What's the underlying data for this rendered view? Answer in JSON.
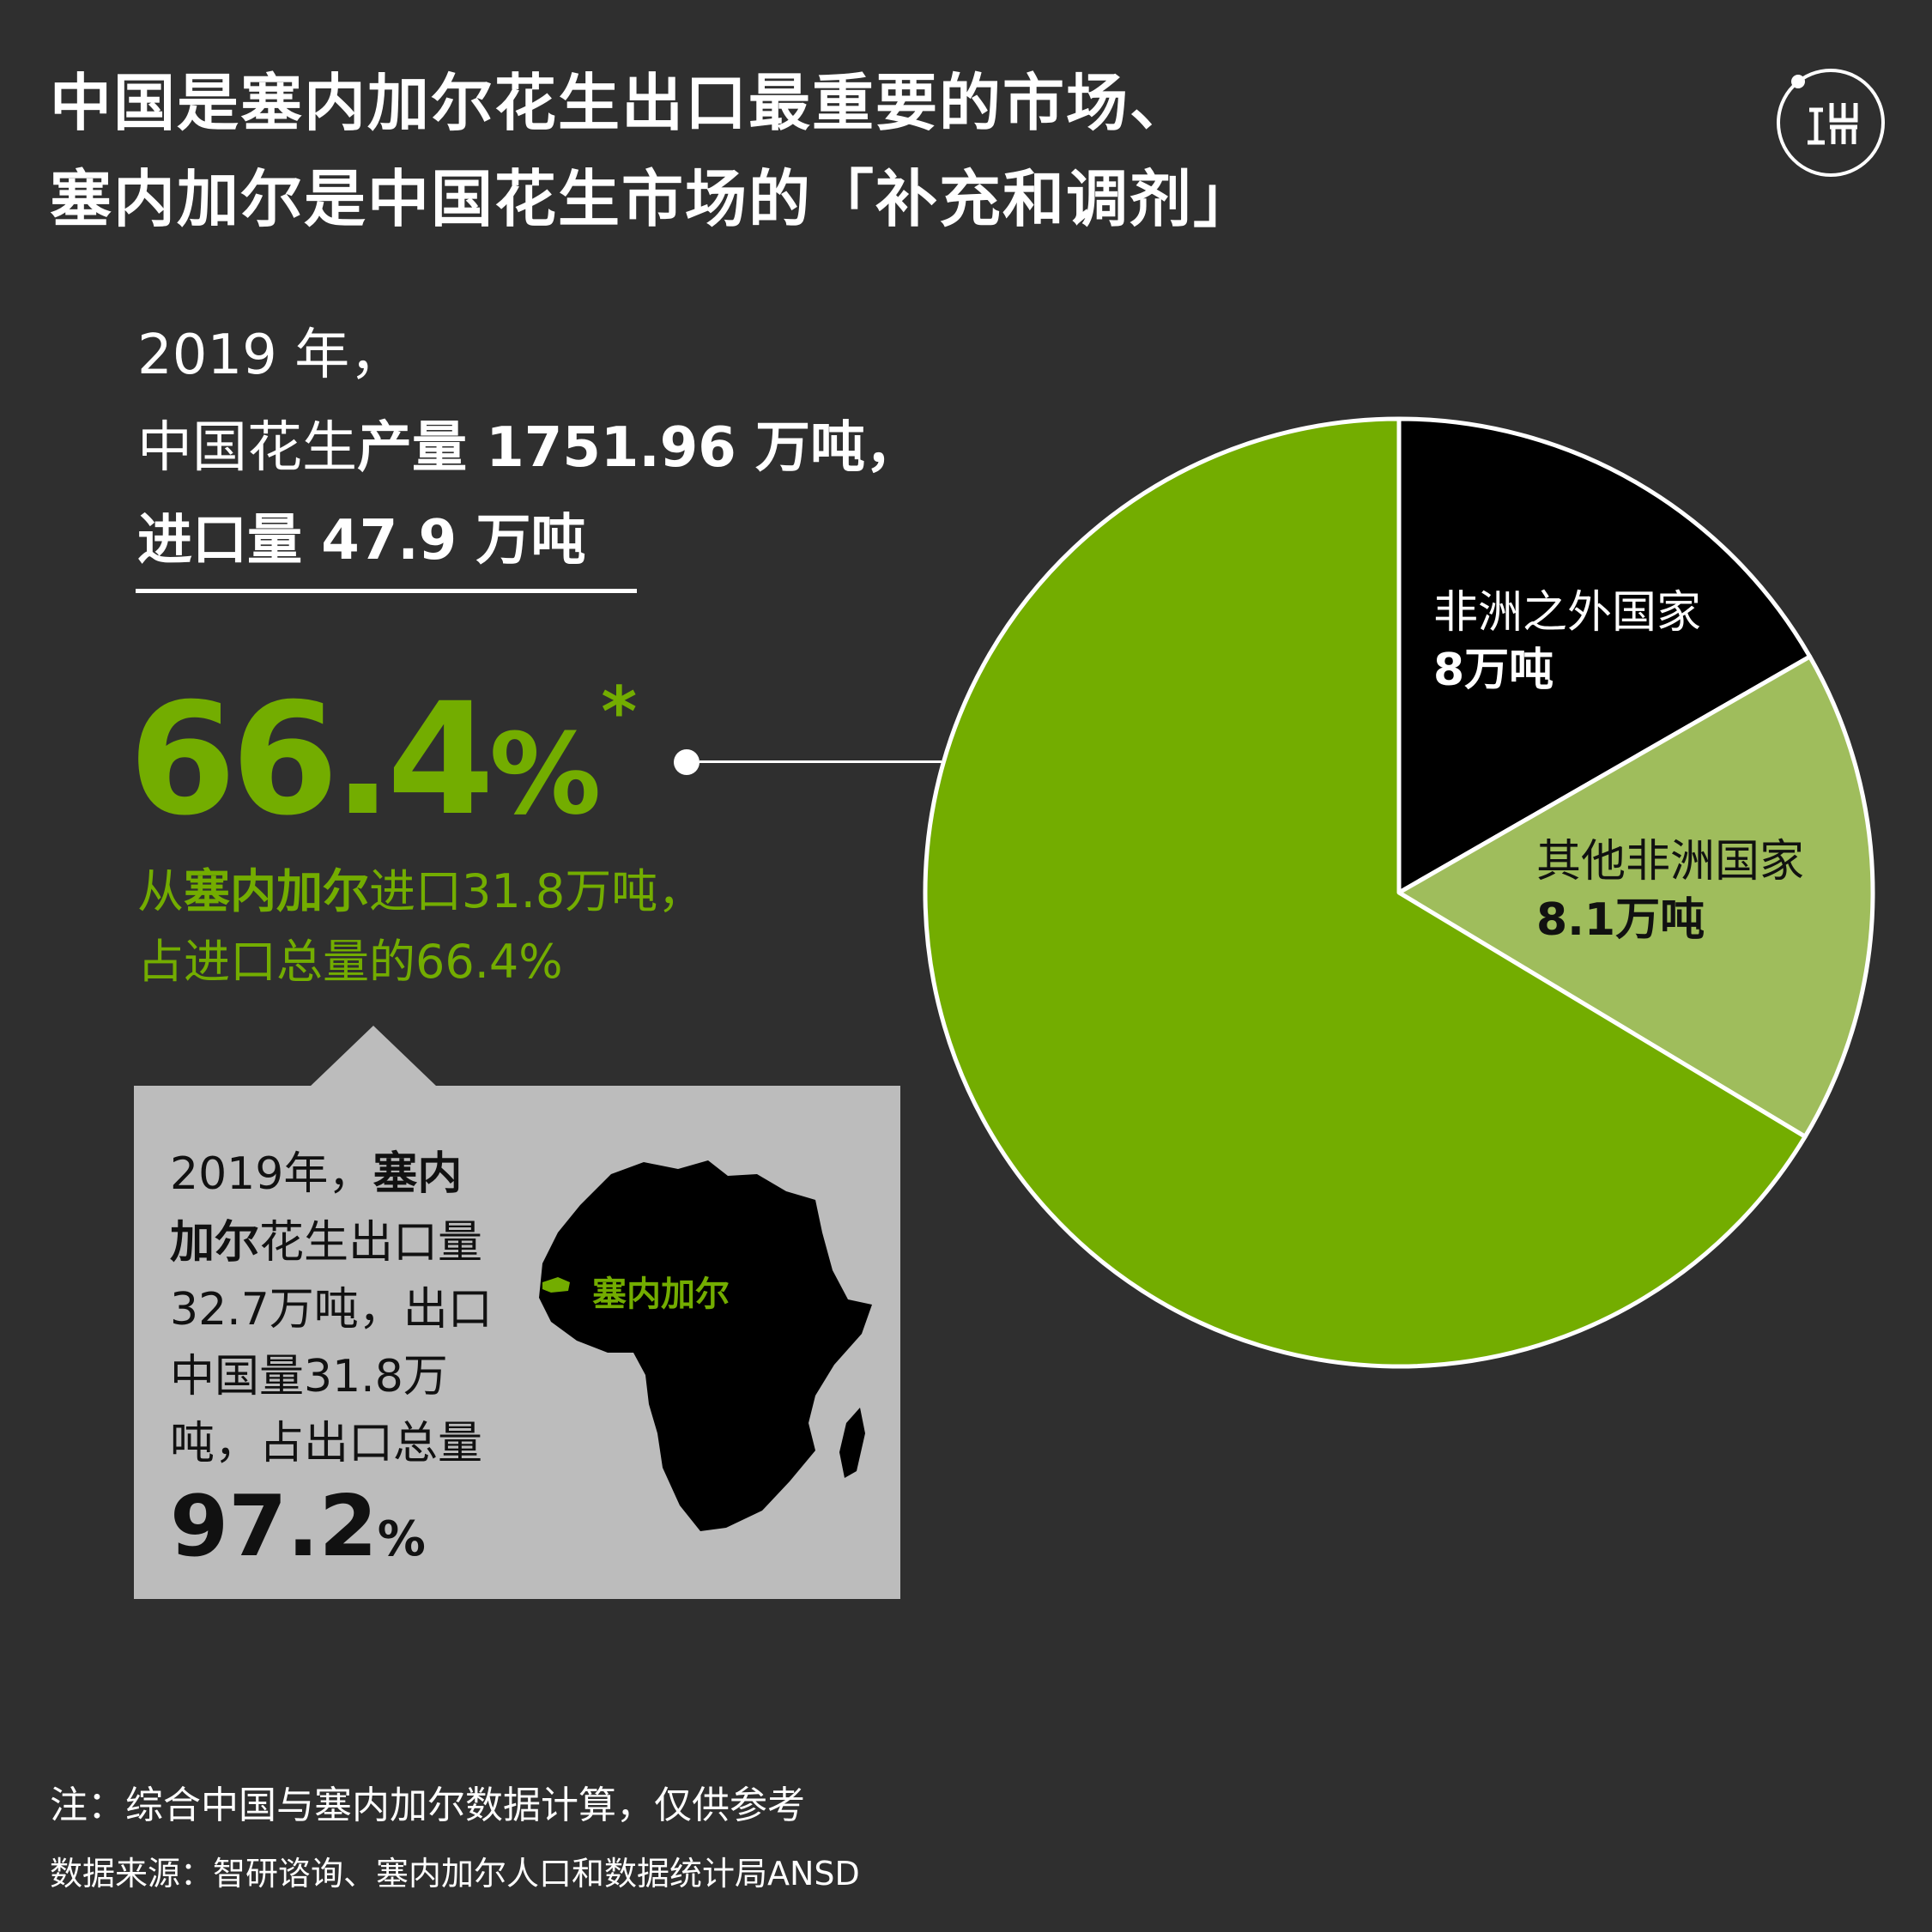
{
  "title": {
    "line1": "中国是塞内加尔花生出口最重要的市场、",
    "line2": "塞内加尔是中国花生市场的「补充和调剂」"
  },
  "logo": {
    "icon": "duan-logo-icon"
  },
  "intro": {
    "year": "2019 年，",
    "line2_prefix": "中国花生",
    "line2_bold": "产量 1751.96 万吨，",
    "line3": "进口量 47.9 万吨"
  },
  "highlight": {
    "number": "66.4",
    "percent": "%",
    "asterisk": "*",
    "from_prefix": "从",
    "from_bold": "塞内加尔",
    "from_suffix": "进口31.8万吨，",
    "share_line": "占进口总量的66.4%"
  },
  "senegal_box": {
    "l1_normal": "2019年，",
    "l1_bold": "塞内",
    "l2_bold": "加尔",
    "l2_normal": "花生出口量",
    "l3": "32.7万吨，出口",
    "l4": "中国量31.8万",
    "l5": "吨，占出口总量",
    "big_number": "97.2",
    "big_percent": "%",
    "map_label": "塞内加尔",
    "map_icon": "africa-map-icon"
  },
  "colors": {
    "background": "#2f2f2f",
    "senegal": "#73ad00",
    "other_africa": "#9fbd5c",
    "non_africa": "#000000",
    "box": "#bcbcbc"
  },
  "chart_data": {
    "type": "pie",
    "unit": "万吨",
    "slices": [
      {
        "name": "非洲之外国家",
        "value": 8,
        "label": "8万吨",
        "color": "#000000"
      },
      {
        "name": "其他非洲国家",
        "value": 8.1,
        "label": "8.1万吨",
        "color": "#9fbd5c"
      },
      {
        "name": "塞内加尔",
        "value": 31.8,
        "label": "66.4%",
        "color": "#73ad00"
      }
    ]
  },
  "notes": {
    "note": "注：综合中国与塞内加尔数据计算，仅供参考",
    "source": "数据来源：智研谘询、塞内加尔人口和数据统计局ANSD"
  }
}
